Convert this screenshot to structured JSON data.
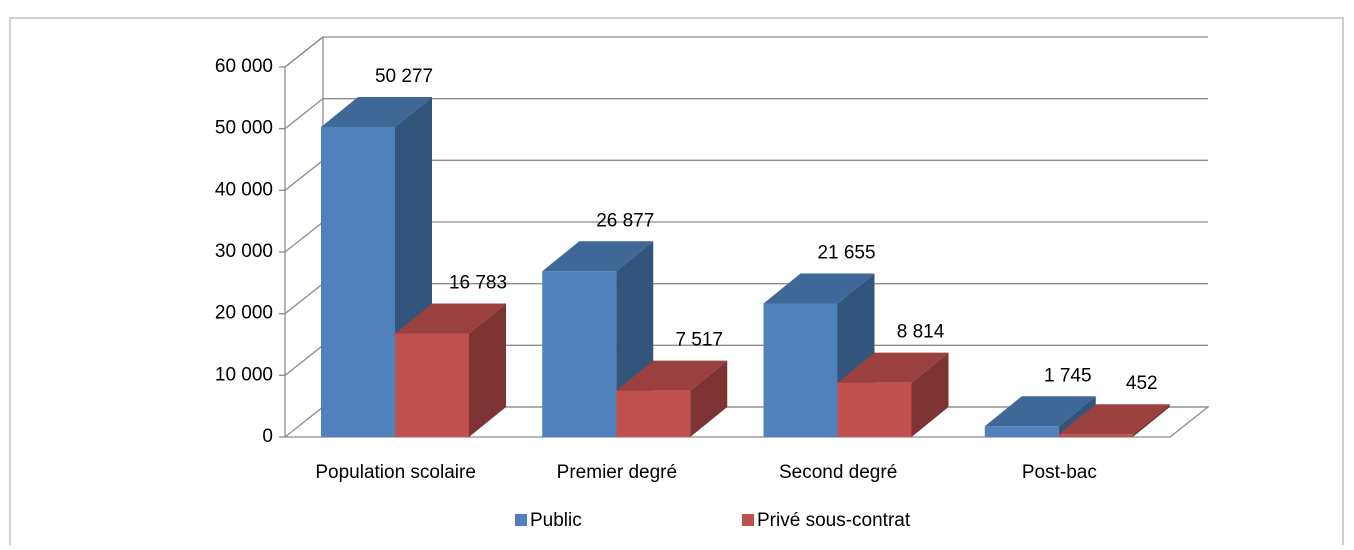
{
  "chart_data": {
    "type": "bar3d",
    "categories": [
      "Population scolaire",
      "Premier degré",
      "Second degré",
      "Post-bac"
    ],
    "series": [
      {
        "name": "Public",
        "color": "#4f81bd",
        "values": [
          50277,
          26877,
          21655,
          1745
        ],
        "value_labels": [
          "50 277",
          "26 877",
          "21 655",
          "1 745"
        ]
      },
      {
        "name": "Privé sous-contrat",
        "color": "#c0504d",
        "values": [
          16783,
          7517,
          8814,
          452
        ],
        "value_labels": [
          "16 783",
          "7 517",
          "8 814",
          "452"
        ]
      }
    ],
    "ylim": [
      0,
      60000
    ],
    "yticks": [
      {
        "value": 0,
        "label": "0"
      },
      {
        "value": 10000,
        "label": "10 000"
      },
      {
        "value": 20000,
        "label": "20 000"
      },
      {
        "value": 30000,
        "label": "30 000"
      },
      {
        "value": 40000,
        "label": "40 000"
      },
      {
        "value": 50000,
        "label": "50 000"
      },
      {
        "value": 60000,
        "label": "60 000"
      }
    ],
    "grid": true,
    "legend": "bottom"
  }
}
